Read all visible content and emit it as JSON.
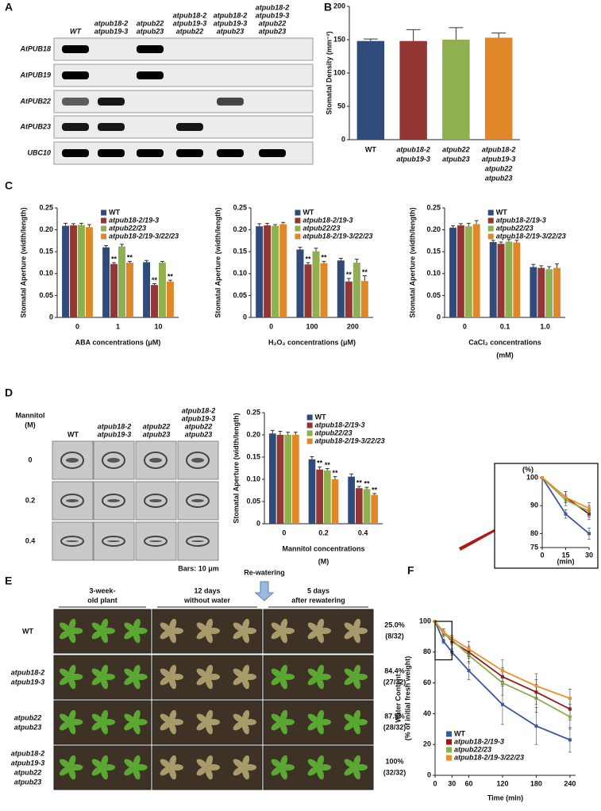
{
  "panel_labels": [
    "A",
    "B",
    "C",
    "D",
    "E",
    "F"
  ],
  "gel": {
    "lanes": [
      [
        "WT"
      ],
      [
        "atpub18-2",
        "atpub19-3"
      ],
      [
        "atpub22",
        "atpub23"
      ],
      [
        "atpub18-2",
        "atpub19-3",
        "atpub22"
      ],
      [
        "atpub18-2",
        "atpub19-3",
        "atpub23"
      ],
      [
        "atpub18-2",
        "atpub19-3",
        "atpub22",
        "atpub23"
      ]
    ],
    "genes": [
      "AtPUB18",
      "AtPUB19",
      "AtPUB22",
      "AtPUB23",
      "UBC10"
    ]
  },
  "micrographs": {
    "row_header": [
      "Mannitol",
      "(M)"
    ],
    "columns": [
      [
        "WT"
      ],
      [
        "atpub18-2",
        "atpub19-3"
      ],
      [
        "atpub22",
        "atpub23"
      ],
      [
        "atpub18-2",
        "atpub19-3",
        "atpub22",
        "atpub23"
      ]
    ],
    "rows": [
      "0",
      "0.2",
      "0.4"
    ],
    "scale": "Bars: 10 μm"
  },
  "plants": {
    "stages": [
      [
        "3-week-",
        "old plant"
      ],
      [
        "12 days",
        "without water"
      ],
      [
        "5 days",
        "after rewatering"
      ]
    ],
    "arrow_label": "Re-watering",
    "genotypes": [
      [
        "WT"
      ],
      [
        "atpub18-2",
        "atpub19-3"
      ],
      [
        "atpub22",
        "atpub23"
      ],
      [
        "atpub18-2",
        "atpub19-3",
        "atpub22",
        "atpub23"
      ]
    ],
    "survival": [
      [
        "25.0%",
        "(8/32)"
      ],
      [
        "84.4%",
        "(27/32)"
      ],
      [
        "87.5%",
        "(28/32)"
      ],
      [
        "100%",
        "(32/32)"
      ]
    ]
  },
  "chart_data": [
    {
      "type": "bar",
      "y_label": [
        "Stomatal Density (mm⁻²)"
      ],
      "categories": [
        [
          "WT"
        ],
        [
          "atpub18-2",
          "atpub19-3"
        ],
        [
          "atpub22",
          "atpub23"
        ],
        [
          "atpub18-2",
          "atpub19-3",
          "atpub22",
          "atpub23"
        ]
      ],
      "values": [
        148,
        148,
        150,
        153
      ],
      "errors": [
        3,
        17,
        18,
        7
      ],
      "colors": [
        "#2f4b7c",
        "#943634",
        "#8eb04f",
        "#e0872a"
      ],
      "ylim": [
        0,
        200
      ],
      "yticks": [
        0,
        50,
        100,
        150,
        200
      ]
    },
    {
      "type": "bar",
      "y_label": [
        "Stomatal Aperture (width/length)"
      ],
      "x_label": [
        "ABA concentrations (μM)"
      ],
      "categories": [
        "0",
        "1",
        "10"
      ],
      "legend": "top-left",
      "series": [
        {
          "name": "WT",
          "color": "#2f4b7c",
          "values": [
            0.209,
            0.16,
            0.126
          ],
          "errors": [
            0.006,
            0.004,
            0.004
          ]
        },
        {
          "name": "atpub18-2/19-3",
          "color": "#943634",
          "values": [
            0.21,
            0.122,
            0.074
          ],
          "errors": [
            0.004,
            0.003,
            0.003
          ],
          "annotations": [
            null,
            "**",
            "**"
          ]
        },
        {
          "name": "atpub22/23",
          "color": "#8eb04f",
          "values": [
            0.211,
            0.162,
            0.125
          ],
          "errors": [
            0.004,
            0.005,
            0.003
          ]
        },
        {
          "name": "atpub18-2/19-3/22/23",
          "color": "#e0872a",
          "values": [
            0.206,
            0.125,
            0.082
          ],
          "errors": [
            0.006,
            0.003,
            0.003
          ],
          "annotations": [
            null,
            "**",
            "**"
          ]
        }
      ],
      "ylim": [
        0,
        0.25
      ],
      "yticks": [
        0,
        0.05,
        {
          "value": 0.1,
          "label": "0.10"
        },
        0.15,
        {
          "value": 0.2,
          "label": "0.20"
        },
        0.25
      ]
    },
    {
      "type": "bar",
      "y_label": [
        "Stomatal Aperture (width/length)"
      ],
      "x_label": [
        "H₂O₂ concentrations (μM)"
      ],
      "categories": [
        "0",
        "100",
        "200"
      ],
      "legend": "top-left",
      "series": [
        {
          "name": "WT",
          "color": "#2f4b7c",
          "values": [
            0.208,
            0.155,
            0.13
          ],
          "errors": [
            0.006,
            0.005,
            0.005
          ]
        },
        {
          "name": "atpub18-2/19-3",
          "color": "#943634",
          "values": [
            0.21,
            0.121,
            0.082
          ],
          "errors": [
            0.005,
            0.004,
            0.007
          ],
          "annotations": [
            null,
            "**",
            "**"
          ]
        },
        {
          "name": "atpub22/23",
          "color": "#8eb04f",
          "values": [
            0.209,
            0.151,
            0.125
          ],
          "errors": [
            0.003,
            0.007,
            0.008
          ]
        },
        {
          "name": "atpub18-2/19-3/22/23",
          "color": "#e0872a",
          "values": [
            0.213,
            0.124,
            0.083
          ],
          "errors": [
            0.004,
            0.004,
            0.012
          ],
          "annotations": [
            null,
            "**",
            "**"
          ]
        }
      ],
      "ylim": [
        0,
        0.25
      ],
      "yticks": [
        0,
        0.05,
        {
          "value": 0.1,
          "label": "0.10"
        },
        0.15,
        {
          "value": 0.2,
          "label": "0.20"
        },
        0.25
      ]
    },
    {
      "type": "bar",
      "y_label": [
        "Stomatal Aperture (width/length)"
      ],
      "x_label": [
        "CaCl₂ concentrations",
        "(mM)"
      ],
      "categories": [
        "0",
        "0.1",
        "1.0"
      ],
      "legend": "top-left",
      "series": [
        {
          "name": "WT",
          "color": "#2f4b7c",
          "values": [
            0.205,
            0.172,
            0.115
          ],
          "errors": [
            0.004,
            0.004,
            0.006
          ]
        },
        {
          "name": "atpub18-2/19-3",
          "color": "#943634",
          "values": [
            0.21,
            0.168,
            0.113
          ],
          "errors": [
            0.004,
            0.004,
            0.005
          ]
        },
        {
          "name": "atpub22/23",
          "color": "#8eb04f",
          "values": [
            0.208,
            0.173,
            0.11
          ],
          "errors": [
            0.007,
            0.005,
            0.006
          ]
        },
        {
          "name": "atpub18-2/19-3/22/23",
          "color": "#e0872a",
          "values": [
            0.213,
            0.171,
            0.113
          ],
          "errors": [
            0.008,
            0.005,
            0.009
          ]
        }
      ],
      "ylim": [
        0,
        0.25
      ],
      "yticks": [
        0,
        0.05,
        {
          "value": 0.1,
          "label": "0.10"
        },
        0.15,
        {
          "value": 0.2,
          "label": "0.20"
        },
        0.25
      ]
    },
    {
      "type": "bar",
      "y_label": [
        "Stomatal Aperture (width/length)"
      ],
      "x_label": [
        "Mannitol concentrations",
        "(M)"
      ],
      "categories": [
        "0",
        "0.2",
        "0.4"
      ],
      "legend": "top-left",
      "series": [
        {
          "name": "WT",
          "color": "#2f4b7c",
          "values": [
            0.203,
            0.145,
            0.106
          ],
          "errors": [
            0.007,
            0.006,
            0.006
          ]
        },
        {
          "name": "atpub18-2/19-3",
          "color": "#943634",
          "values": [
            0.2,
            0.122,
            0.08
          ],
          "errors": [
            0.008,
            0.006,
            0.004
          ],
          "annotations": [
            null,
            "**",
            "**"
          ]
        },
        {
          "name": "atpub22/23",
          "color": "#8eb04f",
          "values": [
            0.2,
            0.12,
            0.078
          ],
          "errors": [
            0.006,
            0.004,
            0.004
          ],
          "annotations": [
            null,
            "**",
            "**"
          ]
        },
        {
          "name": "atpub18-2/19-3/22/23",
          "color": "#e0872a",
          "values": [
            0.2,
            0.1,
            0.065
          ],
          "errors": [
            0.006,
            0.006,
            0.003
          ],
          "annotations": [
            null,
            "**",
            "**"
          ]
        }
      ],
      "ylim": [
        0,
        0.25
      ],
      "yticks": [
        0,
        0.05,
        {
          "value": 0.1,
          "label": "0.10"
        },
        0.15,
        {
          "value": 0.2,
          "label": "0.20"
        },
        0.25
      ]
    },
    {
      "type": "line",
      "y_label": [
        "Water Content",
        "(% of initial fresh weight)"
      ],
      "x_label": [
        "Time (min)"
      ],
      "x": [
        0,
        15,
        30,
        60,
        120,
        180,
        240
      ],
      "legend": "bottom-left",
      "series": [
        {
          "name": "WT",
          "color": "#3a5a9a",
          "values": [
            100,
            87,
            80,
            68,
            46,
            32,
            23
          ],
          "errors": [
            0,
            1.5,
            2,
            6,
            13,
            12,
            8
          ]
        },
        {
          "name": "atpub18-2/19-3",
          "color": "#9a1a1a",
          "values": [
            100,
            93,
            87,
            80,
            64,
            54,
            43
          ],
          "errors": [
            0,
            2,
            2,
            4,
            6,
            8,
            7
          ]
        },
        {
          "name": "atpub22/23",
          "color": "#8ab04a",
          "values": [
            100,
            92,
            88,
            78,
            60,
            50,
            38
          ],
          "errors": [
            0,
            2,
            2,
            5,
            8,
            9,
            8
          ]
        },
        {
          "name": "atpub18-2/19-3/22/23",
          "color": "#e8922e",
          "values": [
            100,
            93,
            89,
            82,
            68,
            58,
            50
          ],
          "errors": [
            0,
            2,
            2,
            5,
            7,
            8,
            6
          ]
        }
      ],
      "xlim": [
        0,
        250
      ],
      "xticks": [
        0,
        30,
        60,
        120,
        180,
        240
      ],
      "ylim": [
        0,
        100
      ],
      "yticks": [
        0,
        20,
        40,
        60,
        80,
        100
      ],
      "inset": {
        "y_label": "(%)",
        "x_label": "(min)",
        "xlim": [
          0,
          30
        ],
        "xticks": [
          0,
          15,
          30
        ],
        "ylim": [
          75,
          100
        ],
        "yticks": [
          75,
          80,
          90,
          100
        ]
      }
    }
  ]
}
